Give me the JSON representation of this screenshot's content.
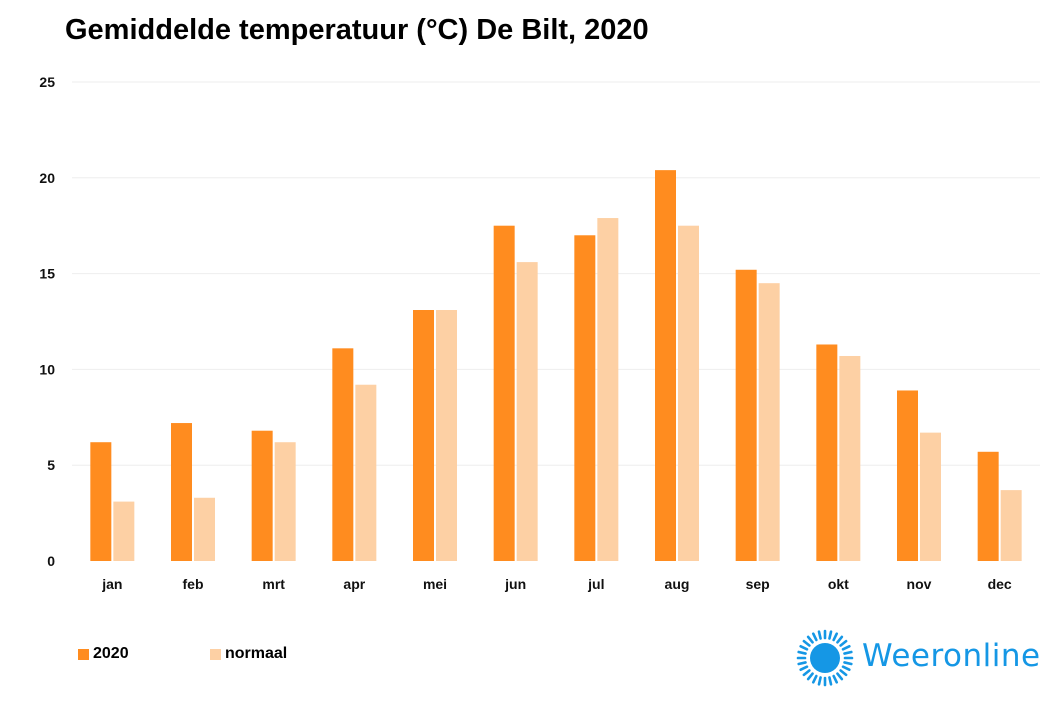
{
  "title": "Gemiddelde temperatuur (°C) De Bilt, 2020",
  "colors": {
    "2020": "#ff8c1f",
    "normaal": "#fdd0a4",
    "grid": "#eeeeee",
    "logo": "#1597e5"
  },
  "legend": {
    "item_2020": "2020",
    "item_normaal": "normaal"
  },
  "logo": {
    "text": "Weeronline",
    "icon": "sun-icon"
  },
  "chart_data": {
    "type": "bar",
    "title": "Gemiddelde temperatuur (°C) De Bilt, 2020",
    "xlabel": "",
    "ylabel": "",
    "ylim": [
      0,
      25
    ],
    "yticks": [
      0,
      5,
      10,
      15,
      20,
      25
    ],
    "grid": true,
    "legend_position": "bottom-left",
    "categories": [
      "jan",
      "feb",
      "mrt",
      "apr",
      "mei",
      "jun",
      "jul",
      "aug",
      "sep",
      "okt",
      "nov",
      "dec"
    ],
    "series": [
      {
        "name": "2020",
        "values": [
          6.2,
          7.2,
          6.8,
          11.1,
          13.1,
          17.5,
          17.0,
          20.4,
          15.2,
          11.3,
          8.9,
          5.7
        ]
      },
      {
        "name": "normaal",
        "values": [
          3.1,
          3.3,
          6.2,
          9.2,
          13.1,
          15.6,
          17.9,
          17.5,
          14.5,
          10.7,
          6.7,
          3.7
        ]
      }
    ]
  }
}
